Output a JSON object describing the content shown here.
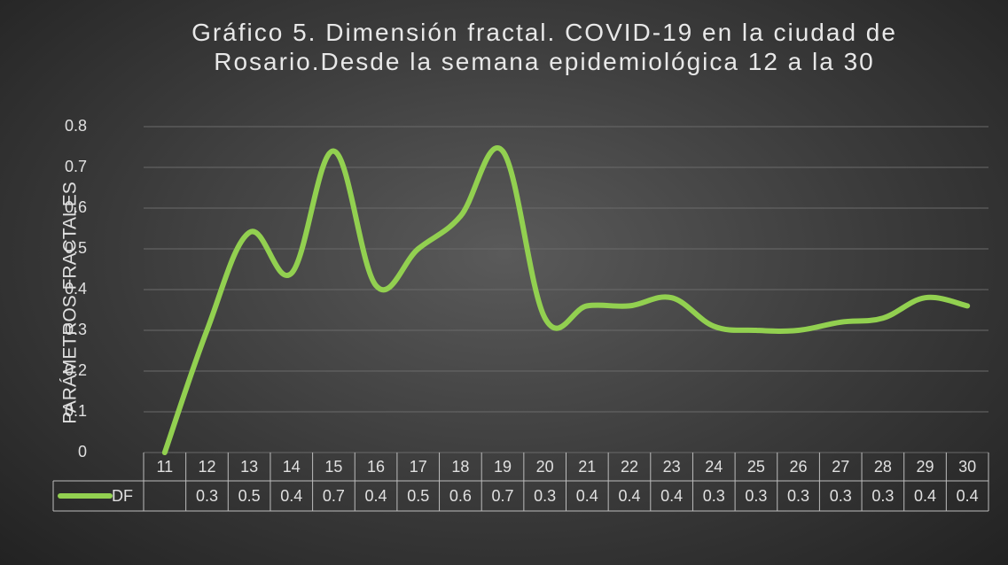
{
  "chart_data": {
    "type": "line",
    "title": "Gráfico 5. Dimensión fractal. COVID-19 en la ciudad de Rosario.Desde la semana epidemiológica 12 a la 30",
    "y_label": "PARÁMETROS FRACTALES",
    "categories": [
      "11",
      "12",
      "13",
      "14",
      "15",
      "16",
      "17",
      "18",
      "19",
      "20",
      "21",
      "22",
      "23",
      "24",
      "25",
      "26",
      "27",
      "28",
      "29",
      "30"
    ],
    "series": [
      {
        "name": "DF",
        "color": "#92d050",
        "values": [
          0,
          0.3,
          0.54,
          0.44,
          0.74,
          0.41,
          0.5,
          0.58,
          0.74,
          0.33,
          0.36,
          0.36,
          0.38,
          0.31,
          0.3,
          0.3,
          0.32,
          0.33,
          0.38,
          0.36
        ],
        "value_labels": [
          null,
          "0.3",
          "0.5",
          "0.4",
          "0.7",
          "0.4",
          "0.5",
          "0.6",
          "0.7",
          "0.3",
          "0.4",
          "0.4",
          "0.4",
          "0.3",
          "0.3",
          "0.3",
          "0.3",
          "0.3",
          "0.4",
          "0.4"
        ]
      }
    ],
    "ylim": [
      0,
      0.8
    ],
    "yticks": [
      0,
      0.1,
      0.2,
      0.3,
      0.4,
      0.5,
      0.6,
      0.7,
      0.8
    ],
    "grid": true
  }
}
